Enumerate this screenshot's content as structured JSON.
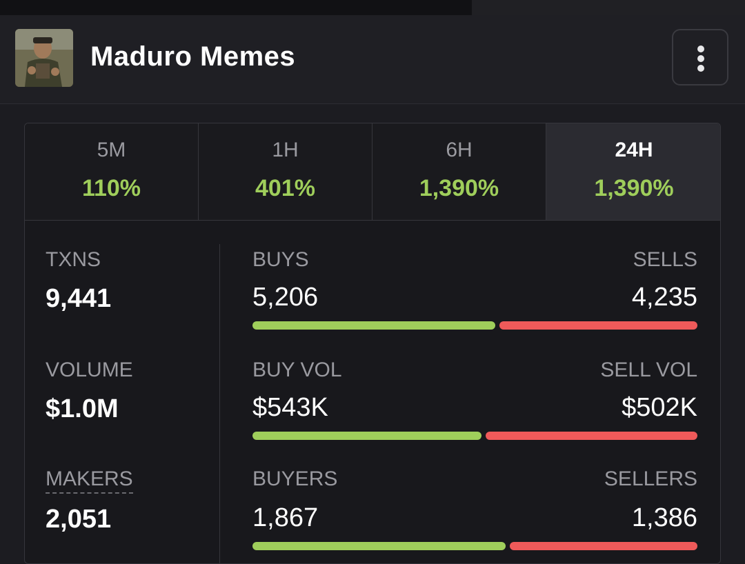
{
  "header": {
    "title": "Maduro Memes",
    "avatar_icon": "token-avatar",
    "menu_icon": "kebab-menu-icon"
  },
  "tabs": [
    {
      "label": "5M",
      "change": "110%",
      "active": false
    },
    {
      "label": "1H",
      "change": "401%",
      "active": false
    },
    {
      "label": "6H",
      "change": "1,390%",
      "active": false
    },
    {
      "label": "24H",
      "change": "1,390%",
      "active": true
    }
  ],
  "stats": {
    "txns": {
      "label": "TXNS",
      "value": "9,441"
    },
    "volume": {
      "label": "VOLUME",
      "value": "$1.0M"
    },
    "makers": {
      "label": "MAKERS",
      "value": "2,051"
    },
    "buys": {
      "label": "BUYS",
      "value": "5,206",
      "sell_label": "SELLS",
      "sell_value": "4,235",
      "buy_share": 0.551
    },
    "buy_vol": {
      "label": "BUY VOL",
      "value": "$543K",
      "sell_label": "SELL VOL",
      "sell_value": "$502K",
      "buy_share": 0.52
    },
    "buyers": {
      "label": "BUYERS",
      "value": "1,867",
      "sell_label": "SELLERS",
      "sell_value": "1,386",
      "buy_share": 0.574
    }
  },
  "colors": {
    "positive": "#9fce5b",
    "negative": "#ef5a5a",
    "background": "#18181c"
  }
}
